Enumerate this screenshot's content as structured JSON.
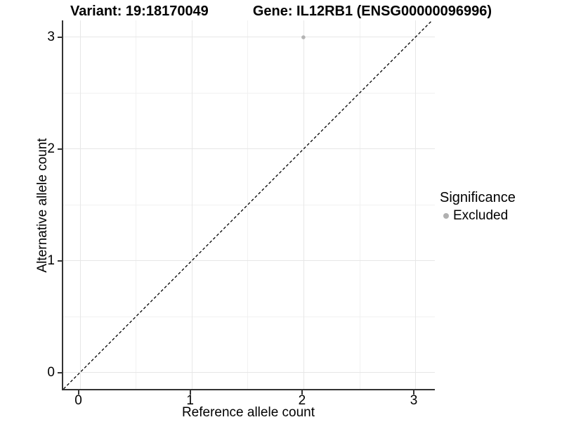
{
  "header": {
    "variant_title": "Variant: 19:18170049",
    "gene_title": "Gene: IL12RB1 (ENSG00000096996)"
  },
  "chart_data": {
    "type": "scatter",
    "title": "Variant: 19:18170049   Gene: IL12RB1 (ENSG00000096996)",
    "xlabel": "Reference allele count",
    "ylabel": "Alternative allele count",
    "xlim": [
      -0.16,
      3.18
    ],
    "ylim": [
      -0.16,
      3.15
    ],
    "x_ticks": [
      0,
      1,
      2,
      3
    ],
    "y_ticks": [
      0,
      1,
      2,
      3
    ],
    "x_tick_labels": [
      "0",
      "1",
      "2",
      "3"
    ],
    "y_tick_labels": [
      "0",
      "1",
      "2",
      "3"
    ],
    "minor_gridlines": [
      0.5,
      1.5,
      2.5
    ],
    "grid": true,
    "reference_line": {
      "kind": "identity y=x",
      "style": "dashed",
      "color": "#000000"
    },
    "series": [
      {
        "name": "Excluded",
        "color": "#b4b4b4",
        "points": [
          {
            "x": 2,
            "y": 3
          }
        ]
      }
    ],
    "legend": {
      "title": "Significance",
      "position": "right",
      "entries": [
        {
          "label": "Excluded",
          "color": "#b0b0b0"
        }
      ]
    }
  },
  "colors": {
    "background": "#ffffff",
    "grid_major": "#e7e7e7",
    "grid_minor": "#f1f1f1",
    "axis_line": "#333333",
    "text": "#000000",
    "excluded_point": "#b4b4b4"
  }
}
